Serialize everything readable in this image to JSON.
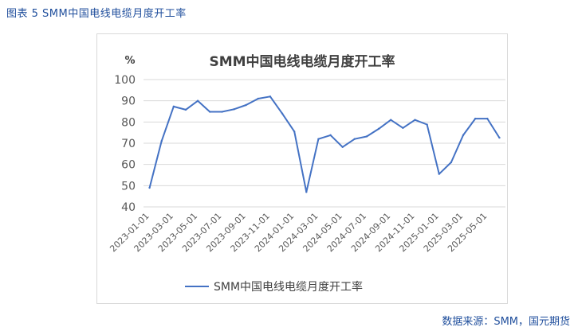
{
  "figure": {
    "caption": "图表 5 SMM中国电线电缆月度开工率",
    "source": "数据来源：SMM，国元期货"
  },
  "colors": {
    "caption_text": "#1f4e9c",
    "series_line": "#4472c4",
    "grid": "#d9d9d9",
    "axis_text": "#595959"
  },
  "chart_data": {
    "type": "line",
    "title": "SMM中国电线电缆月度开工率",
    "ylabel": "%",
    "xlabel": "",
    "ylim": [
      40,
      100
    ],
    "yticks": [
      40,
      50,
      60,
      70,
      80,
      90,
      100
    ],
    "grid": true,
    "legend_position": "bottom",
    "x": [
      "2023-01-01",
      "2023-02-01",
      "2023-03-01",
      "2023-04-01",
      "2023-05-01",
      "2023-06-01",
      "2023-07-01",
      "2023-08-01",
      "2023-09-01",
      "2023-10-01",
      "2023-11-01",
      "2023-12-01",
      "2024-01-01",
      "2024-02-01",
      "2024-03-01",
      "2024-04-01",
      "2024-05-01",
      "2024-06-01",
      "2024-07-01",
      "2024-08-01",
      "2024-09-01",
      "2024-10-01",
      "2024-11-01",
      "2024-12-01",
      "2025-01-01",
      "2025-02-01",
      "2025-03-01",
      "2025-04-01",
      "2025-05-01",
      "2025-06-01"
    ],
    "xtick_labels": [
      "2023-01-01",
      "2023-03-01",
      "2023-05-01",
      "2023-07-01",
      "2023-09-01",
      "2023-11-01",
      "2024-01-01",
      "2024-03-01",
      "2024-05-01",
      "2024-07-01",
      "2024-09-01",
      "2024-11-01",
      "2025-01-01",
      "2025-03-01",
      "2025-05-01"
    ],
    "series": [
      {
        "name": "SMM中国电线电缆月度开工率",
        "values": [
          49.0,
          71.0,
          87.3,
          85.8,
          90.0,
          84.8,
          84.8,
          86.0,
          88.0,
          91.0,
          92.0,
          84.0,
          75.5,
          47.0,
          72.0,
          73.8,
          68.2,
          72.0,
          73.2,
          76.8,
          81.0,
          77.2,
          81.0,
          78.8,
          55.5,
          61.0,
          73.8,
          81.6,
          81.6,
          72.6
        ]
      }
    ]
  }
}
